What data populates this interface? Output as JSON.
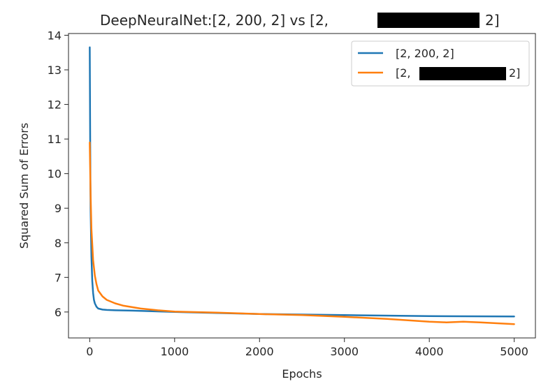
{
  "chart_data": {
    "type": "line",
    "title_prefix": "DeepNeuralNet:[2, 200, 2] vs [2,",
    "title_suffix": "2]",
    "xlabel": "Epochs",
    "ylabel": "Squared Sum of Errors",
    "xlim": [
      -250,
      5250
    ],
    "ylim": [
      5.25,
      14.05
    ],
    "xticks": [
      0,
      1000,
      2000,
      3000,
      4000,
      5000
    ],
    "yticks": [
      6,
      7,
      8,
      9,
      10,
      11,
      12,
      13,
      14
    ],
    "legend_position": "top-right",
    "grid": false,
    "series": [
      {
        "name": "[2, 200, 2]",
        "color": "#1f77b4",
        "x": [
          0,
          5,
          10,
          20,
          30,
          40,
          50,
          60,
          80,
          100,
          150,
          200,
          300,
          500,
          1000,
          2000,
          3000,
          4000,
          5000
        ],
        "y": [
          13.65,
          11.0,
          9.0,
          7.6,
          6.9,
          6.55,
          6.35,
          6.25,
          6.15,
          6.1,
          6.07,
          6.06,
          6.05,
          6.04,
          6.0,
          5.94,
          5.91,
          5.88,
          5.87
        ]
      },
      {
        "name_prefix": "[2,",
        "name_suffix": "2]",
        "color": "#ff7f0e",
        "x": [
          0,
          10,
          20,
          40,
          60,
          80,
          100,
          150,
          200,
          300,
          400,
          600,
          800,
          1000,
          1500,
          2000,
          2500,
          3000,
          3500,
          4000,
          4200,
          4400,
          4600,
          5000
        ],
        "y": [
          10.9,
          9.4,
          8.4,
          7.5,
          7.05,
          6.8,
          6.62,
          6.45,
          6.35,
          6.25,
          6.18,
          6.1,
          6.05,
          6.01,
          5.98,
          5.94,
          5.91,
          5.86,
          5.8,
          5.72,
          5.7,
          5.72,
          5.7,
          5.65
        ]
      }
    ]
  }
}
